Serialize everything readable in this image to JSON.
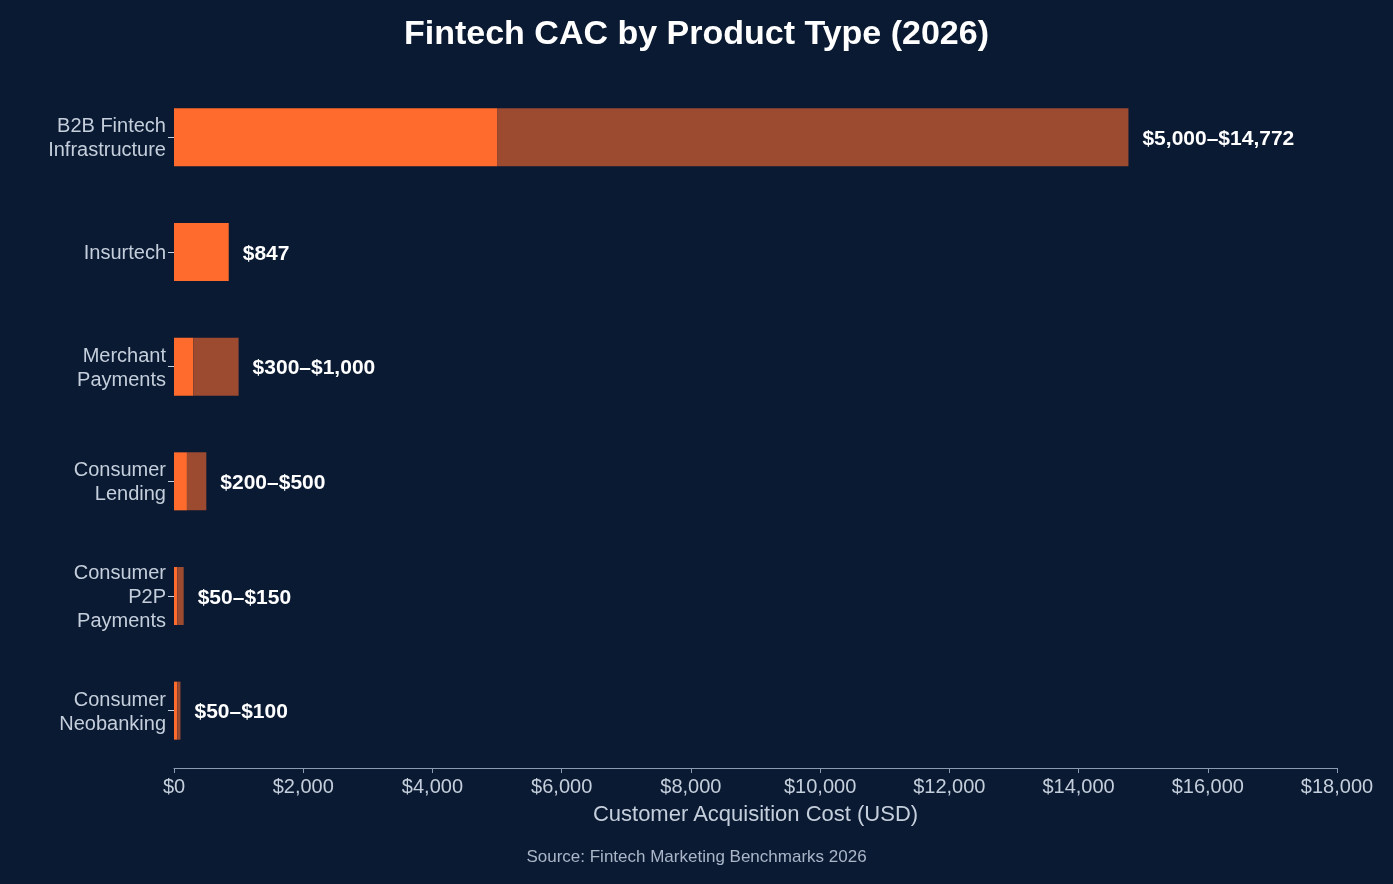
{
  "chart_data": {
    "type": "bar",
    "orientation": "horizontal",
    "stacked": true,
    "title": "Fintech CAC by Product Type (2026)",
    "xlabel": "Customer Acquisition Cost (USD)",
    "annotations": [
      "Source: Fintech Marketing Benchmarks 2026"
    ],
    "categories": [
      "B2B Fintech Infrastructure",
      "Insurtech",
      "Merchant Payments",
      "Consumer Lending",
      "Consumer P2P Payments",
      "Consumer Neobanking"
    ],
    "series": [
      {
        "color": "#ff6b2c",
        "values": [
          5000,
          847,
          300,
          200,
          50,
          50
        ],
        "value_labels": [
          null,
          "$847",
          null,
          null,
          null,
          null
        ]
      },
      {
        "color": "#9c4a30",
        "values": [
          9772,
          null,
          700,
          300,
          100,
          50
        ],
        "value_labels": [
          "$5,000–$14,772",
          null,
          "$300–$1,000",
          "$200–$500",
          "$50–$150",
          "$50–$100"
        ]
      }
    ],
    "xlim": [
      0,
      18000
    ],
    "xticks": [
      {
        "value": 0,
        "label": "$0"
      },
      {
        "value": 2000,
        "label": "$2,000"
      },
      {
        "value": 4000,
        "label": "$4,000"
      },
      {
        "value": 6000,
        "label": "$6,000"
      },
      {
        "value": 8000,
        "label": "$8,000"
      },
      {
        "value": 10000,
        "label": "$10,000"
      },
      {
        "value": 12000,
        "label": "$12,000"
      },
      {
        "value": 14000,
        "label": "$14,000"
      },
      {
        "value": 16000,
        "label": "$16,000"
      },
      {
        "value": 18000,
        "label": "$18,000"
      }
    ],
    "grid": false
  }
}
